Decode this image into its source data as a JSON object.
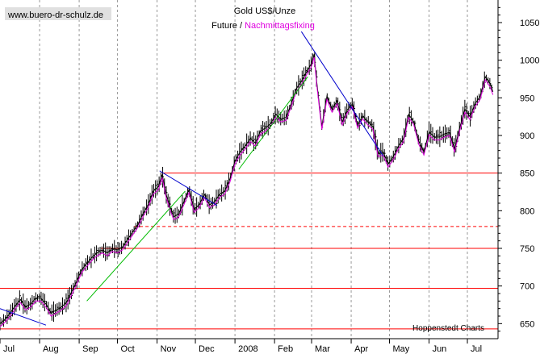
{
  "chart_data": {
    "type": "line",
    "title": "Gold US$/Unze",
    "subtitle_prefix": "Future / ",
    "subtitle_highlight": "Nachmittagsfixing",
    "watermark": "www.buero-dr-schulz.de",
    "source": "Hoppenstedt Charts",
    "ylim": [
      630,
      1080
    ],
    "y_ticks": [
      650,
      700,
      750,
      800,
      850,
      900,
      950,
      1000,
      1050
    ],
    "x_range_days": [
      0,
      390
    ],
    "x_ticks": [
      {
        "label": "Jul",
        "day": 0
      },
      {
        "label": "Aug",
        "day": 31
      },
      {
        "label": "Sep",
        "day": 62
      },
      {
        "label": "Oct",
        "day": 92
      },
      {
        "label": "Nov",
        "day": 123
      },
      {
        "label": "Dec",
        "day": 153
      },
      {
        "label": "2008",
        "day": 184
      },
      {
        "label": "Feb",
        "day": 215
      },
      {
        "label": "Mar",
        "day": 244
      },
      {
        "label": "Apr",
        "day": 275
      },
      {
        "label": "May",
        "day": 305
      },
      {
        "label": "Jun",
        "day": 336
      },
      {
        "label": "Jul",
        "day": 366
      }
    ],
    "colors": {
      "price": "#000000",
      "fixing": "#e000e0",
      "support": "#ff0000",
      "downtrend": "#0000cc",
      "uptrend": "#00bb00",
      "grid": "#999999",
      "watermark_bg": "#e0e0e0"
    },
    "horizontal_lines": [
      {
        "value": 643,
        "style": "solid",
        "from_day": 0
      },
      {
        "value": 697,
        "style": "solid",
        "from_day": 0
      },
      {
        "value": 750,
        "style": "solid",
        "from_day": 79
      },
      {
        "value": 779,
        "style": "dashed",
        "from_day": 105
      },
      {
        "value": 850,
        "style": "solid",
        "from_day": 127
      }
    ],
    "trendlines": [
      {
        "color": "downtrend",
        "from": [
          0,
          670
        ],
        "to": [
          36,
          648
        ]
      },
      {
        "color": "downtrend",
        "from": [
          125,
          853
        ],
        "to": [
          170,
          807
        ]
      },
      {
        "color": "downtrend",
        "from": [
          236,
          1038
        ],
        "to": [
          300,
          873
        ]
      },
      {
        "color": "uptrend",
        "from": [
          68,
          680
        ],
        "to": [
          145,
          826
        ]
      },
      {
        "color": "uptrend",
        "from": [
          187,
          855
        ],
        "to": [
          241,
          978
        ]
      }
    ],
    "series": [
      {
        "name": "Future",
        "days": [
          0,
          4,
          8,
          12,
          16,
          20,
          24,
          28,
          32,
          36,
          40,
          44,
          48,
          52,
          56,
          60,
          64,
          68,
          72,
          76,
          80,
          84,
          88,
          92,
          96,
          100,
          104,
          108,
          112,
          116,
          120,
          124,
          127,
          130,
          133,
          136,
          140,
          144,
          148,
          152,
          156,
          160,
          164,
          168,
          172,
          176,
          180,
          184,
          188,
          192,
          196,
          200,
          204,
          208,
          212,
          216,
          220,
          224,
          228,
          232,
          236,
          240,
          244,
          246,
          248,
          252,
          256,
          260,
          264,
          268,
          272,
          276,
          280,
          284,
          288,
          292,
          296,
          300,
          304,
          308,
          312,
          316,
          320,
          324,
          328,
          332,
          336,
          340,
          344,
          348,
          352,
          356,
          360,
          364,
          368,
          372,
          376,
          380,
          384,
          386
        ],
        "values": [
          650,
          656,
          664,
          674,
          682,
          672,
          676,
          684,
          684,
          676,
          664,
          668,
          672,
          678,
          692,
          706,
          722,
          730,
          738,
          744,
          748,
          744,
          750,
          748,
          752,
          762,
          772,
          782,
          796,
          808,
          826,
          832,
          848,
          822,
          806,
          792,
          796,
          812,
          828,
          802,
          808,
          822,
          808,
          812,
          822,
          826,
          842,
          866,
          878,
          886,
          896,
          890,
          906,
          910,
          916,
          928,
          922,
          924,
          942,
          962,
          972,
          984,
          996,
          1008,
          972,
          912,
          952,
          935,
          946,
          918,
          934,
          942,
          914,
          926,
          918,
          912,
          876,
          878,
          862,
          872,
          886,
          896,
          928,
          918,
          892,
          878,
          905,
          898,
          898,
          902,
          904,
          882,
          910,
          935,
          925,
          942,
          952,
          978,
          968,
          958
        ]
      }
    ]
  }
}
